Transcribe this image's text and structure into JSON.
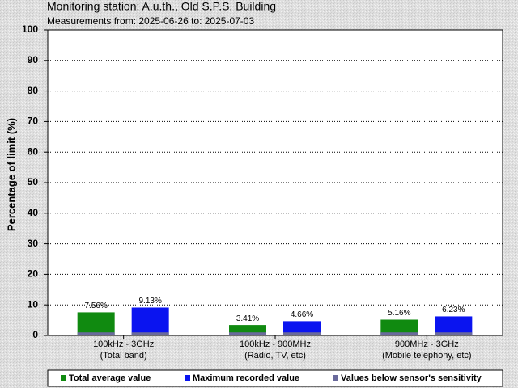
{
  "chart_data": {
    "type": "bar",
    "title": "Monitoring station: A.u.th., Old S.P.S. Building",
    "subtitle": "Measurements from: 2025-06-26 to: 2025-07-03",
    "y_label": "Percentage of limit (%)",
    "categories": [
      [
        "100kHz - 3GHz",
        "(Total band)"
      ],
      [
        "100kHz - 900MHz",
        "(Radio, TV, etc)"
      ],
      [
        "900MHz - 3GHz",
        "(Mobile telephony, etc)"
      ]
    ],
    "series": [
      {
        "name": "Total average value",
        "color": "#108a10",
        "values": [
          7.56,
          3.41,
          5.16
        ],
        "value_labels": [
          "7.56%",
          "3.41%",
          "5.16%"
        ]
      },
      {
        "name": "Maximum recorded value",
        "color": "#0a14f0",
        "values": [
          9.13,
          4.66,
          6.23
        ],
        "value_labels": [
          "9.13%",
          "4.66%",
          "6.23%"
        ]
      },
      {
        "name": "Values below sensor's sensitivity",
        "color": "#6a6a9c",
        "values": [
          1,
          1,
          1
        ]
      }
    ],
    "ylim": [
      0,
      100
    ],
    "yticks": [
      0,
      10,
      20,
      30,
      40,
      50,
      60,
      70,
      80,
      90,
      100
    ],
    "grid": true
  }
}
